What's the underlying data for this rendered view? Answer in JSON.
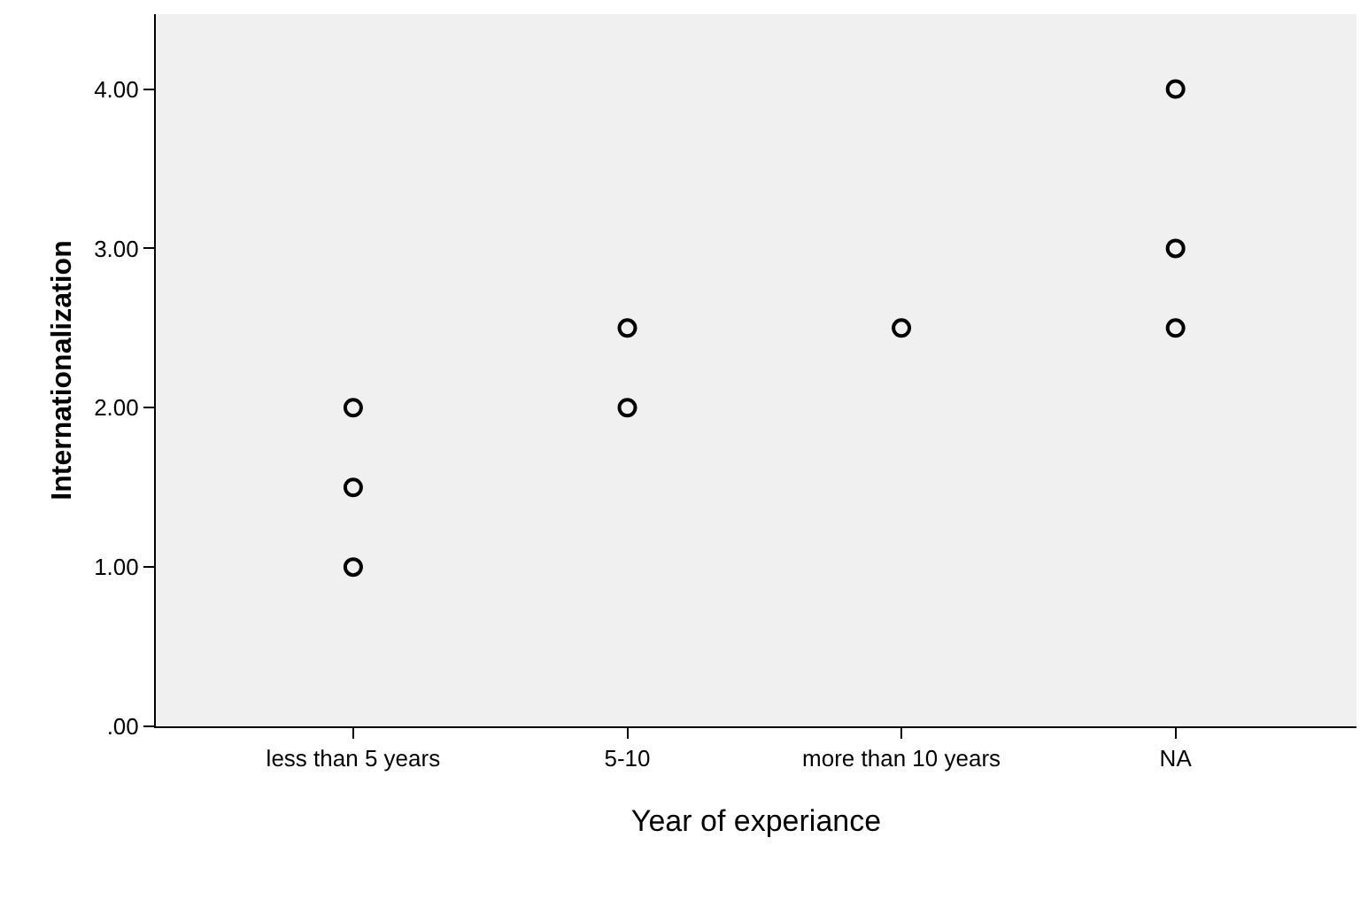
{
  "chart_data": {
    "type": "scatter",
    "xlabel": "Year of experiance",
    "ylabel": "Internationalization",
    "categories": [
      "less than 5 years",
      "5-10",
      "more than 10 years",
      "NA"
    ],
    "series": [
      {
        "color": "#000000",
        "x": [
          "less than 5 years",
          "less than 5 years",
          "less than 5 years",
          "5-10",
          "5-10",
          "more than 10 years",
          "NA",
          "NA",
          "NA"
        ],
        "values": [
          2.0,
          1.5,
          1.0,
          2.5,
          2.0,
          2.5,
          4.0,
          3.0,
          2.5
        ]
      }
    ],
    "ylim": [
      0,
      4.47
    ],
    "yticks": [
      {
        "value": 0,
        "label": ".00"
      },
      {
        "value": 1,
        "label": "1.00"
      },
      {
        "value": 2,
        "label": "2.00"
      },
      {
        "value": 3,
        "label": "3.00"
      },
      {
        "value": 4,
        "label": "4.00"
      }
    ],
    "marker": "circle",
    "grid": false,
    "legend": false
  }
}
